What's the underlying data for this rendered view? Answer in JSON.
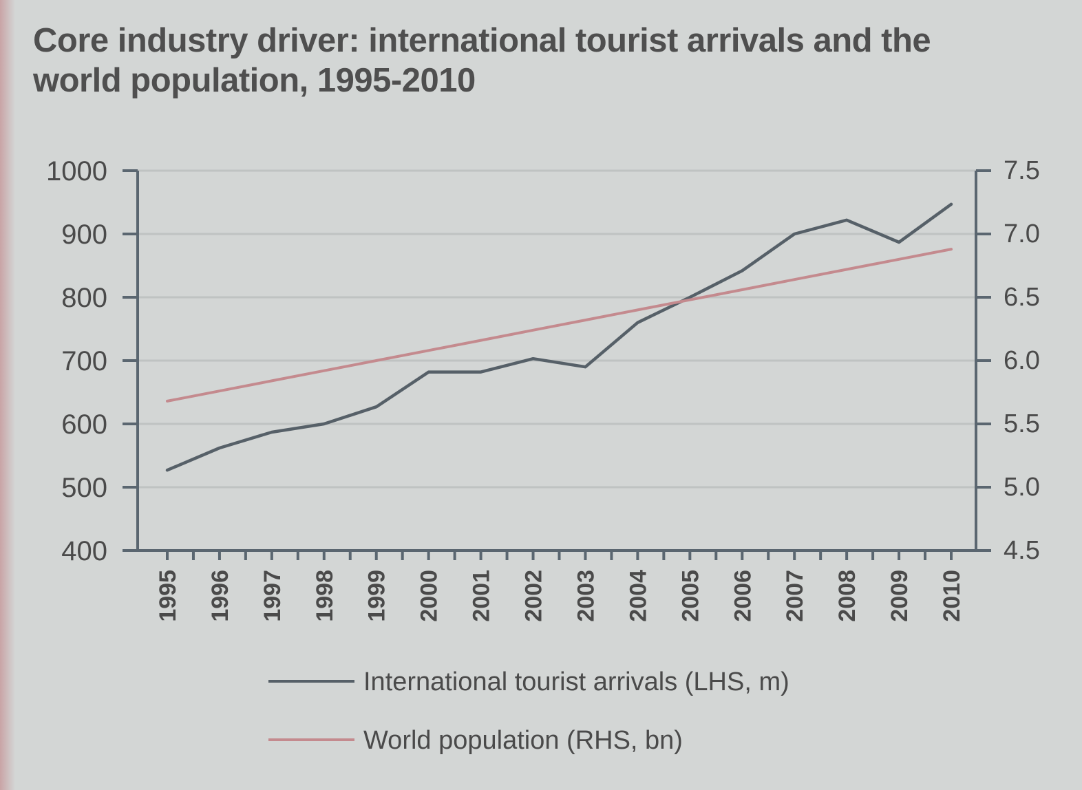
{
  "chart_data": {
    "type": "line",
    "title": "Core industry driver: international tourist arrivals and the world population, 1995-2010",
    "categories": [
      "1995",
      "1996",
      "1997",
      "1998",
      "1999",
      "2000",
      "2001",
      "2002",
      "2003",
      "2004",
      "2005",
      "2006",
      "2007",
      "2008",
      "2009",
      "2010"
    ],
    "left_axis": {
      "ylim": [
        400,
        1000
      ],
      "ticks": [
        "400",
        "500",
        "600",
        "700",
        "800",
        "900",
        "1000"
      ]
    },
    "right_axis": {
      "ylim": [
        4.5,
        7.5
      ],
      "ticks": [
        "4.5",
        "5.0",
        "5.5",
        "6.0",
        "6.5",
        "7.0",
        "7.5"
      ]
    },
    "series": [
      {
        "name": "International tourist arrivals (LHS, m)",
        "axis": "left",
        "color": "#566068",
        "values": [
          527,
          562,
          587,
          600,
          627,
          682,
          682,
          703,
          690,
          760,
          800,
          842,
          900,
          922,
          887,
          947
        ]
      },
      {
        "name": "World population (RHS, bn)",
        "axis": "right",
        "color": "#c48a8e",
        "values": [
          5.68,
          5.76,
          5.84,
          5.92,
          6.0,
          6.08,
          6.16,
          6.24,
          6.32,
          6.4,
          6.48,
          6.56,
          6.64,
          6.72,
          6.8,
          6.88
        ]
      }
    ],
    "grid": true,
    "legend": "bottom"
  }
}
